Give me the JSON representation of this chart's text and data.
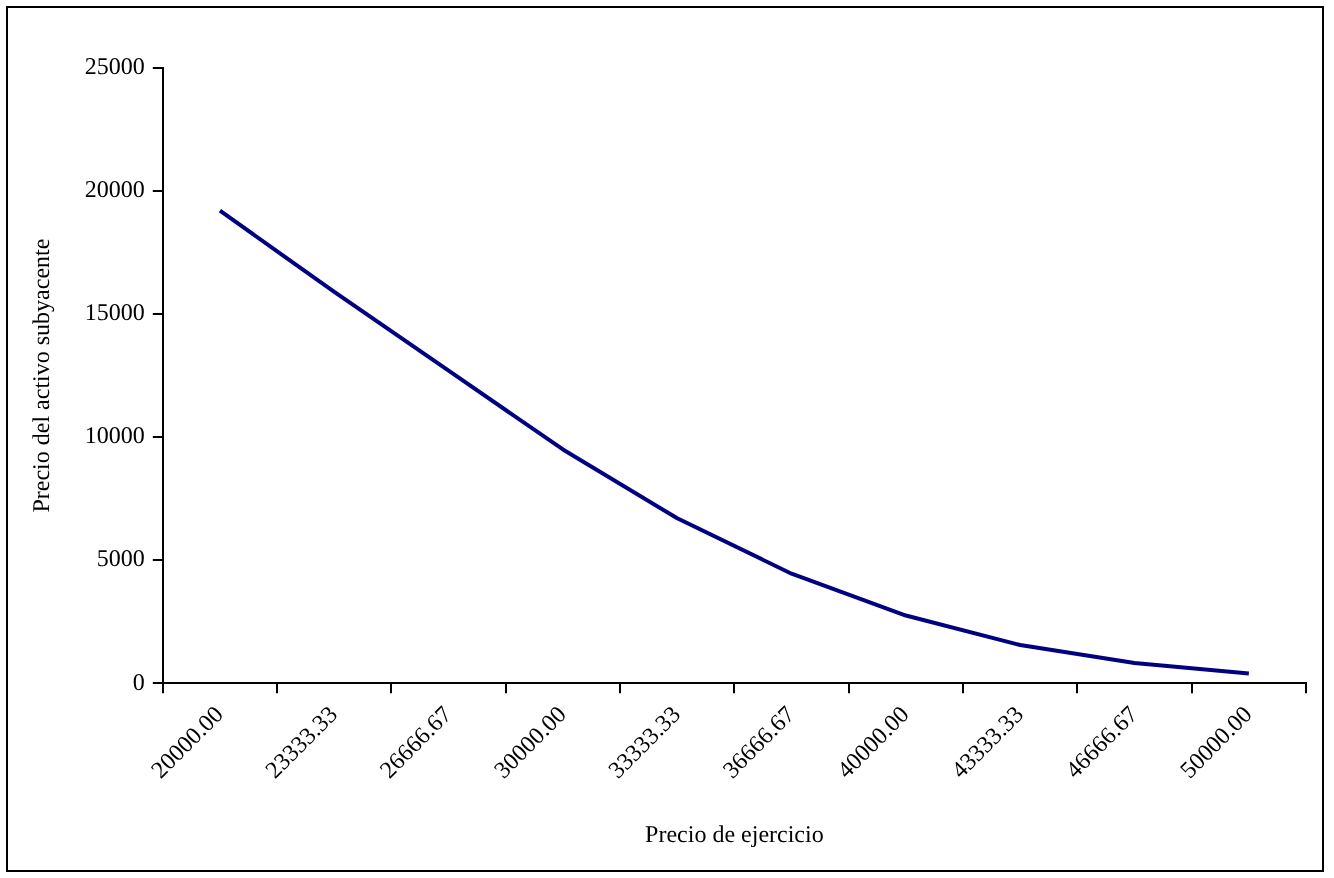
{
  "chart_data": {
    "type": "line",
    "xlabel": "Precio de ejercicio",
    "ylabel": "Precio del activo subyacente",
    "categories": [
      "20000.00",
      "23333.33",
      "26666.67",
      "30000.00",
      "33333.33",
      "36666.67",
      "40000.00",
      "43333.33",
      "46666.67",
      "50000.00"
    ],
    "series": [
      {
        "color": "#000080",
        "values": [
          19200,
          15900,
          12700,
          9500,
          6700,
          4450,
          2750,
          1550,
          820,
          390
        ]
      }
    ],
    "ylim": [
      0,
      25000
    ],
    "yticks": [
      0,
      5000,
      10000,
      15000,
      20000,
      25000
    ],
    "grid": false,
    "legend": false,
    "marker": "none",
    "line_style": "solid"
  }
}
